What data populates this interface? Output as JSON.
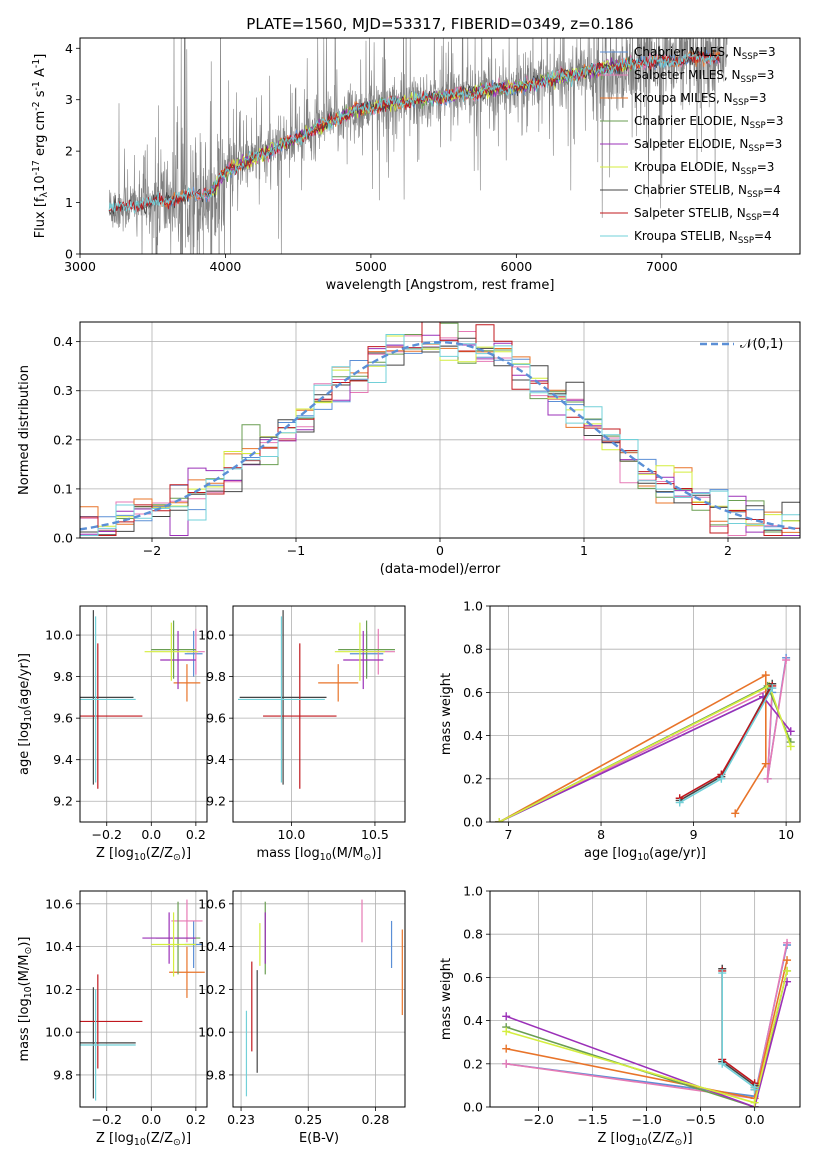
{
  "figure_title": "PLATE=1560, MJD=53317, FIBERID=0349, z=0.186",
  "colors": {
    "chabrier_miles": "#5b8fd6",
    "salpeter_miles": "#e67ab5",
    "kroupa_miles": "#e8742a",
    "chabrier_elodie": "#6a9e52",
    "salpeter_elodie": "#9b30b8",
    "kroupa_elodie": "#d4ee3e",
    "chabrier_stelib": "#444444",
    "salpeter_stelib": "#c0181e",
    "kroupa_stelib": "#72d0d8",
    "data": "#808080",
    "normal": "#5b8fd6"
  },
  "chart_data": [
    {
      "id": "spectrum",
      "type": "line",
      "xlabel": "wavelength [Angstrom, rest frame]",
      "ylabel": "Flux [f$_\\lambda$10$^{-17}$ erg cm$^{-2}$ s$^{-1}$ A$^{-1}$]",
      "xlim": [
        3000,
        7950
      ],
      "ylim": [
        0,
        4.2
      ],
      "xticks": [
        3000,
        4000,
        5000,
        6000,
        7000
      ],
      "yticks": [
        0,
        1,
        2,
        3,
        4
      ],
      "grid": false,
      "legend_position": "right",
      "continuum": {
        "x": [
          3200,
          3500,
          3700,
          3900,
          4000,
          4300,
          4600,
          4900,
          5200,
          5600,
          6000,
          6400,
          6800,
          7200,
          7450
        ],
        "y": [
          0.9,
          1.0,
          1.1,
          1.2,
          1.6,
          2.0,
          2.4,
          2.8,
          2.95,
          3.1,
          3.25,
          3.5,
          3.7,
          3.8,
          3.85
        ]
      },
      "series": [
        {
          "name": "Chabrier MILES, N$_{SSP}$=3",
          "color_key": "chabrier_miles",
          "x_range": [
            3540,
            7400
          ]
        },
        {
          "name": "Salpeter MILES, N$_{SSP}$=3",
          "color_key": "salpeter_miles",
          "x_range": [
            3540,
            7400
          ]
        },
        {
          "name": "Kroupa MILES, N$_{SSP}$=3",
          "color_key": "kroupa_miles",
          "x_range": [
            3540,
            7400
          ]
        },
        {
          "name": "Chabrier ELODIE, N$_{SSP}$=3",
          "color_key": "chabrier_elodie",
          "x_range": [
            3900,
            6800
          ]
        },
        {
          "name": "Salpeter ELODIE, N$_{SSP}$=3",
          "color_key": "salpeter_elodie",
          "x_range": [
            3900,
            6800
          ]
        },
        {
          "name": "Kroupa ELODIE, N$_{SSP}$=3",
          "color_key": "kroupa_elodie",
          "x_range": [
            3900,
            6800
          ]
        },
        {
          "name": "Chabrier STELIB, N$_{SSP}$=4",
          "color_key": "chabrier_stelib",
          "x_range": [
            3200,
            7400
          ]
        },
        {
          "name": "Salpeter STELIB, N$_{SSP}$=4",
          "color_key": "salpeter_stelib",
          "x_range": [
            3200,
            7400
          ]
        },
        {
          "name": "Kroupa STELIB, N$_{SSP}$=4",
          "color_key": "kroupa_stelib",
          "x_range": [
            3200,
            7400
          ]
        }
      ]
    },
    {
      "id": "residuals",
      "type": "line",
      "xlabel": "(data-model)/error",
      "ylabel": "Normed distribution",
      "xlim": [
        -2.5,
        2.5
      ],
      "ylim": [
        0,
        0.44
      ],
      "xticks": [
        -2,
        -1,
        0,
        1,
        2
      ],
      "yticks": [
        0.0,
        0.1,
        0.2,
        0.3,
        0.4
      ],
      "grid": true,
      "legend_position": "top-right",
      "legend": "$\\mathcal{N}(0,1)$",
      "bins": 40
    },
    {
      "id": "age_vs_z",
      "type": "scatter",
      "xlabel": "Z [log$_{10}$(Z/Z$_\\odot$)]",
      "ylabel": "age  [log$_{10}$(age/yr)]",
      "xlim": [
        -0.32,
        0.25
      ],
      "ylim": [
        9.1,
        10.14
      ],
      "xticks": [
        -0.2,
        0.0,
        0.2
      ],
      "yticks": [
        9.2,
        9.4,
        9.6,
        9.8,
        10.0
      ],
      "grid": true,
      "points": [
        {
          "c": "chabrier_miles",
          "x": 0.19,
          "y": 9.91,
          "dx": 0.04,
          "dy": 0.11
        },
        {
          "c": "salpeter_miles",
          "x": 0.2,
          "y": 9.92,
          "dx": 0.04,
          "dy": 0.11
        },
        {
          "c": "kroupa_miles",
          "x": 0.16,
          "y": 9.77,
          "dx": 0.06,
          "dy": 0.09
        },
        {
          "c": "chabrier_elodie",
          "x": 0.1,
          "y": 9.93,
          "dx": 0.1,
          "dy": 0.14
        },
        {
          "c": "salpeter_elodie",
          "x": 0.12,
          "y": 9.88,
          "dx": 0.08,
          "dy": 0.14
        },
        {
          "c": "kroupa_elodie",
          "x": 0.09,
          "y": 9.92,
          "dx": 0.12,
          "dy": 0.14
        },
        {
          "c": "chabrier_stelib",
          "x": -0.26,
          "y": 9.7,
          "dx": 0.18,
          "dy": 0.42
        },
        {
          "c": "salpeter_stelib",
          "x": -0.24,
          "y": 9.61,
          "dx": 0.2,
          "dy": 0.35
        },
        {
          "c": "kroupa_stelib",
          "x": -0.25,
          "y": 9.69,
          "dx": 0.18,
          "dy": 0.4
        }
      ]
    },
    {
      "id": "age_vs_mass",
      "type": "scatter",
      "xlabel": "mass [log$_{10}$(M/M$_\\odot$)]",
      "ylabel": "",
      "xlim": [
        9.65,
        10.68
      ],
      "ylim": [
        9.1,
        10.14
      ],
      "xticks": [
        10.0,
        10.5
      ],
      "yticks": [
        9.2,
        9.4,
        9.6,
        9.8,
        10.0
      ],
      "grid": true,
      "points": [
        {
          "c": "chabrier_miles",
          "x": 10.45,
          "y": 9.91,
          "dx": 0.1,
          "dy": 0.11
        },
        {
          "c": "salpeter_miles",
          "x": 10.52,
          "y": 9.92,
          "dx": 0.1,
          "dy": 0.11
        },
        {
          "c": "kroupa_miles",
          "x": 10.28,
          "y": 9.77,
          "dx": 0.12,
          "dy": 0.09
        },
        {
          "c": "chabrier_elodie",
          "x": 10.45,
          "y": 9.93,
          "dx": 0.17,
          "dy": 0.14
        },
        {
          "c": "salpeter_elodie",
          "x": 10.43,
          "y": 9.88,
          "dx": 0.12,
          "dy": 0.14
        },
        {
          "c": "kroupa_elodie",
          "x": 10.41,
          "y": 9.92,
          "dx": 0.15,
          "dy": 0.14
        },
        {
          "c": "chabrier_stelib",
          "x": 9.95,
          "y": 9.7,
          "dx": 0.26,
          "dy": 0.42
        },
        {
          "c": "salpeter_stelib",
          "x": 10.05,
          "y": 9.61,
          "dx": 0.22,
          "dy": 0.35
        },
        {
          "c": "kroupa_stelib",
          "x": 9.94,
          "y": 9.69,
          "dx": 0.26,
          "dy": 0.4
        }
      ]
    },
    {
      "id": "weight_vs_age",
      "type": "line",
      "xlabel": "age  [log$_{10}$(age/yr)]",
      "ylabel": "mass weight",
      "xlim": [
        6.8,
        10.15
      ],
      "ylim": [
        0,
        1.0
      ],
      "xticks": [
        7,
        8,
        9,
        10
      ],
      "yticks": [
        0.0,
        0.2,
        0.4,
        0.6,
        0.8,
        1.0
      ],
      "grid": true,
      "series": [
        {
          "c": "chabrier_miles",
          "x": [
            6.9,
            9.85,
            9.8,
            10.0
          ],
          "y": [
            0.0,
            0.6,
            0.2,
            0.76
          ]
        },
        {
          "c": "salpeter_miles",
          "x": [
            6.9,
            9.85,
            9.8,
            10.0
          ],
          "y": [
            0.0,
            0.62,
            0.2,
            0.75
          ]
        },
        {
          "c": "kroupa_miles",
          "x": [
            6.9,
            9.78,
            9.78,
            9.45
          ],
          "y": [
            0.0,
            0.68,
            0.27,
            0.04
          ]
        },
        {
          "c": "chabrier_elodie",
          "x": [
            6.9,
            9.8,
            10.05
          ],
          "y": [
            0.0,
            0.63,
            0.37
          ]
        },
        {
          "c": "salpeter_elodie",
          "x": [
            6.9,
            9.75,
            10.05
          ],
          "y": [
            0.0,
            0.58,
            0.42
          ]
        },
        {
          "c": "kroupa_elodie",
          "x": [
            6.9,
            9.82,
            10.05
          ],
          "y": [
            0.0,
            0.63,
            0.35
          ]
        },
        {
          "c": "chabrier_stelib",
          "x": [
            8.85,
            9.3,
            9.85
          ],
          "y": [
            0.1,
            0.21,
            0.64
          ]
        },
        {
          "c": "salpeter_stelib",
          "x": [
            8.85,
            9.3,
            9.85
          ],
          "y": [
            0.11,
            0.22,
            0.63
          ]
        },
        {
          "c": "kroupa_stelib",
          "x": [
            8.85,
            9.3,
            9.85
          ],
          "y": [
            0.09,
            0.2,
            0.62
          ]
        }
      ]
    },
    {
      "id": "mass_vs_z",
      "type": "scatter",
      "xlabel": "Z [log$_{10}$(Z/Z$_\\odot$)]",
      "ylabel": "mass [log$_{10}$(M/M$_\\odot$)]",
      "xlim": [
        -0.32,
        0.25
      ],
      "ylim": [
        9.65,
        10.66
      ],
      "xticks": [
        -0.2,
        0.0,
        0.2
      ],
      "yticks": [
        9.8,
        10.0,
        10.2,
        10.4,
        10.6
      ],
      "grid": true,
      "points": [
        {
          "c": "chabrier_miles",
          "x": 0.19,
          "y": 10.41,
          "dx": 0.04,
          "dy": 0.11
        },
        {
          "c": "salpeter_miles",
          "x": 0.16,
          "y": 10.52,
          "dx": 0.07,
          "dy": 0.1
        },
        {
          "c": "kroupa_miles",
          "x": 0.16,
          "y": 10.28,
          "dx": 0.08,
          "dy": 0.12
        },
        {
          "c": "chabrier_elodie",
          "x": 0.12,
          "y": 10.44,
          "dx": 0.1,
          "dy": 0.17
        },
        {
          "c": "salpeter_elodie",
          "x": 0.08,
          "y": 10.44,
          "dx": 0.12,
          "dy": 0.12
        },
        {
          "c": "kroupa_elodie",
          "x": 0.1,
          "y": 10.41,
          "dx": 0.1,
          "dy": 0.15
        },
        {
          "c": "chabrier_stelib",
          "x": -0.26,
          "y": 9.95,
          "dx": 0.19,
          "dy": 0.26
        },
        {
          "c": "salpeter_stelib",
          "x": -0.24,
          "y": 10.05,
          "dx": 0.2,
          "dy": 0.22
        },
        {
          "c": "kroupa_stelib",
          "x": -0.25,
          "y": 9.94,
          "dx": 0.18,
          "dy": 0.26
        }
      ]
    },
    {
      "id": "mass_vs_ebv",
      "type": "scatter",
      "xlabel": "E(B-V)",
      "ylabel": "",
      "xlim": [
        0.222,
        0.286
      ],
      "ylim": [
        9.65,
        10.66
      ],
      "xticks": [
        0.225,
        0.25,
        0.275
      ],
      "yticks": [
        9.8,
        10.0,
        10.2,
        10.4,
        10.6
      ],
      "grid": true,
      "points": [
        {
          "c": "chabrier_miles",
          "x": 0.281,
          "y": 10.41,
          "dx": 0.0,
          "dy": 0.11
        },
        {
          "c": "salpeter_miles",
          "x": 0.27,
          "y": 10.52,
          "dx": 0.0,
          "dy": 0.1
        },
        {
          "c": "kroupa_miles",
          "x": 0.285,
          "y": 10.28,
          "dx": 0.0,
          "dy": 0.2
        },
        {
          "c": "chabrier_elodie",
          "x": 0.234,
          "y": 10.44,
          "dx": 0.0,
          "dy": 0.17
        },
        {
          "c": "salpeter_elodie",
          "x": 0.234,
          "y": 10.44,
          "dx": 0.0,
          "dy": 0.12
        },
        {
          "c": "kroupa_elodie",
          "x": 0.232,
          "y": 10.41,
          "dx": 0.0,
          "dy": 0.1
        },
        {
          "c": "chabrier_stelib",
          "x": 0.231,
          "y": 10.05,
          "dx": 0.0,
          "dy": 0.24
        },
        {
          "c": "salpeter_stelib",
          "x": 0.229,
          "y": 10.12,
          "dx": 0.0,
          "dy": 0.21
        },
        {
          "c": "kroupa_stelib",
          "x": 0.227,
          "y": 9.9,
          "dx": 0.0,
          "dy": 0.2
        }
      ]
    },
    {
      "id": "weight_vs_z",
      "type": "line",
      "xlabel": "Z [log$_{10}$(Z/Z$_\\odot$)]",
      "ylabel": "mass weight",
      "xlim": [
        -2.45,
        0.42
      ],
      "ylim": [
        0,
        1.0
      ],
      "xticks": [
        -2.0,
        -1.5,
        -1.0,
        -0.5,
        0.0
      ],
      "yticks": [
        0.0,
        0.2,
        0.4,
        0.6,
        0.8,
        1.0
      ],
      "grid": true,
      "series": [
        {
          "c": "chabrier_miles",
          "x": [
            -2.3,
            0.0,
            0.3
          ],
          "y": [
            0.2,
            0.05,
            0.75
          ]
        },
        {
          "c": "salpeter_miles",
          "x": [
            -2.3,
            0.0,
            0.3
          ],
          "y": [
            0.2,
            0.04,
            0.76
          ]
        },
        {
          "c": "kroupa_miles",
          "x": [
            -2.3,
            0.0,
            0.3
          ],
          "y": [
            0.27,
            0.04,
            0.68
          ]
        },
        {
          "c": "chabrier_elodie",
          "x": [
            -2.3,
            0.0,
            0.3
          ],
          "y": [
            0.37,
            0.0,
            0.63
          ]
        },
        {
          "c": "salpeter_elodie",
          "x": [
            -2.3,
            0.0,
            0.3
          ],
          "y": [
            0.42,
            0.0,
            0.58
          ]
        },
        {
          "c": "kroupa_elodie",
          "x": [
            -2.3,
            0.0,
            0.3
          ],
          "y": [
            0.35,
            0.02,
            0.63
          ]
        },
        {
          "c": "chabrier_stelib",
          "x": [
            -0.3,
            -0.3,
            0.0,
            0.0
          ],
          "y": [
            0.64,
            0.21,
            0.1,
            0.09
          ]
        },
        {
          "c": "salpeter_stelib",
          "x": [
            -0.3,
            -0.3,
            0.0,
            0.0
          ],
          "y": [
            0.63,
            0.22,
            0.11,
            0.08
          ]
        },
        {
          "c": "kroupa_stelib",
          "x": [
            -0.3,
            -0.3,
            0.0,
            0.0
          ],
          "y": [
            0.62,
            0.2,
            0.09,
            0.08
          ]
        }
      ]
    }
  ]
}
